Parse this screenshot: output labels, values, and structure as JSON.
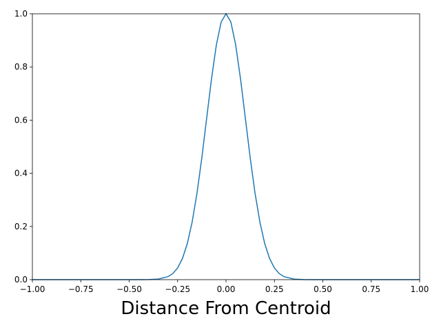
{
  "chart_data": {
    "type": "line",
    "xlabel": "Distance From Centroid",
    "x": [
      -1,
      -0.9,
      -0.8,
      -0.7,
      -0.6,
      -0.5,
      -0.45,
      -0.4,
      -0.35,
      -0.3,
      -0.275,
      -0.25,
      -0.225,
      -0.2,
      -0.175,
      -0.15,
      -0.125,
      -0.1,
      -0.075,
      -0.05,
      -0.025,
      0,
      0.025,
      0.05,
      0.075,
      0.1,
      0.125,
      0.15,
      0.175,
      0.2,
      0.225,
      0.25,
      0.275,
      0.3,
      0.35,
      0.4,
      0.45,
      0.5,
      0.6,
      0.7,
      0.8,
      0.9,
      1
    ],
    "series": [
      {
        "color": "#1f77b4",
        "values": [
          0,
          0,
          0,
          0,
          0,
          0,
          4e-05,
          0.0003,
          0.0022,
          0.0111,
          0.0228,
          0.0439,
          0.0796,
          0.1353,
          0.2163,
          0.3247,
          0.4578,
          0.6065,
          0.7548,
          0.8825,
          0.9692,
          1,
          0.9692,
          0.8825,
          0.7548,
          0.6065,
          0.4578,
          0.3247,
          0.2163,
          0.1353,
          0.0796,
          0.0439,
          0.0228,
          0.0111,
          0.0022,
          0.0003,
          4e-05,
          0,
          0,
          0,
          0,
          0,
          0
        ]
      }
    ],
    "xlim": [
      -1,
      1
    ],
    "ylim": [
      0,
      1
    ],
    "xticks": [
      {
        "value": -1,
        "label": "−1.00"
      },
      {
        "value": -0.75,
        "label": "−0.75"
      },
      {
        "value": -0.5,
        "label": "−0.50"
      },
      {
        "value": -0.25,
        "label": "−0.25"
      },
      {
        "value": 0,
        "label": "0.00"
      },
      {
        "value": 0.25,
        "label": "0.25"
      },
      {
        "value": 0.5,
        "label": "0.50"
      },
      {
        "value": 0.75,
        "label": "0.75"
      },
      {
        "value": 1,
        "label": "1.00"
      }
    ],
    "yticks": [
      {
        "value": 0,
        "label": "0.0"
      },
      0.2,
      0.4,
      0.6,
      0.8,
      {
        "value": 1,
        "label": "1.0"
      }
    ]
  }
}
